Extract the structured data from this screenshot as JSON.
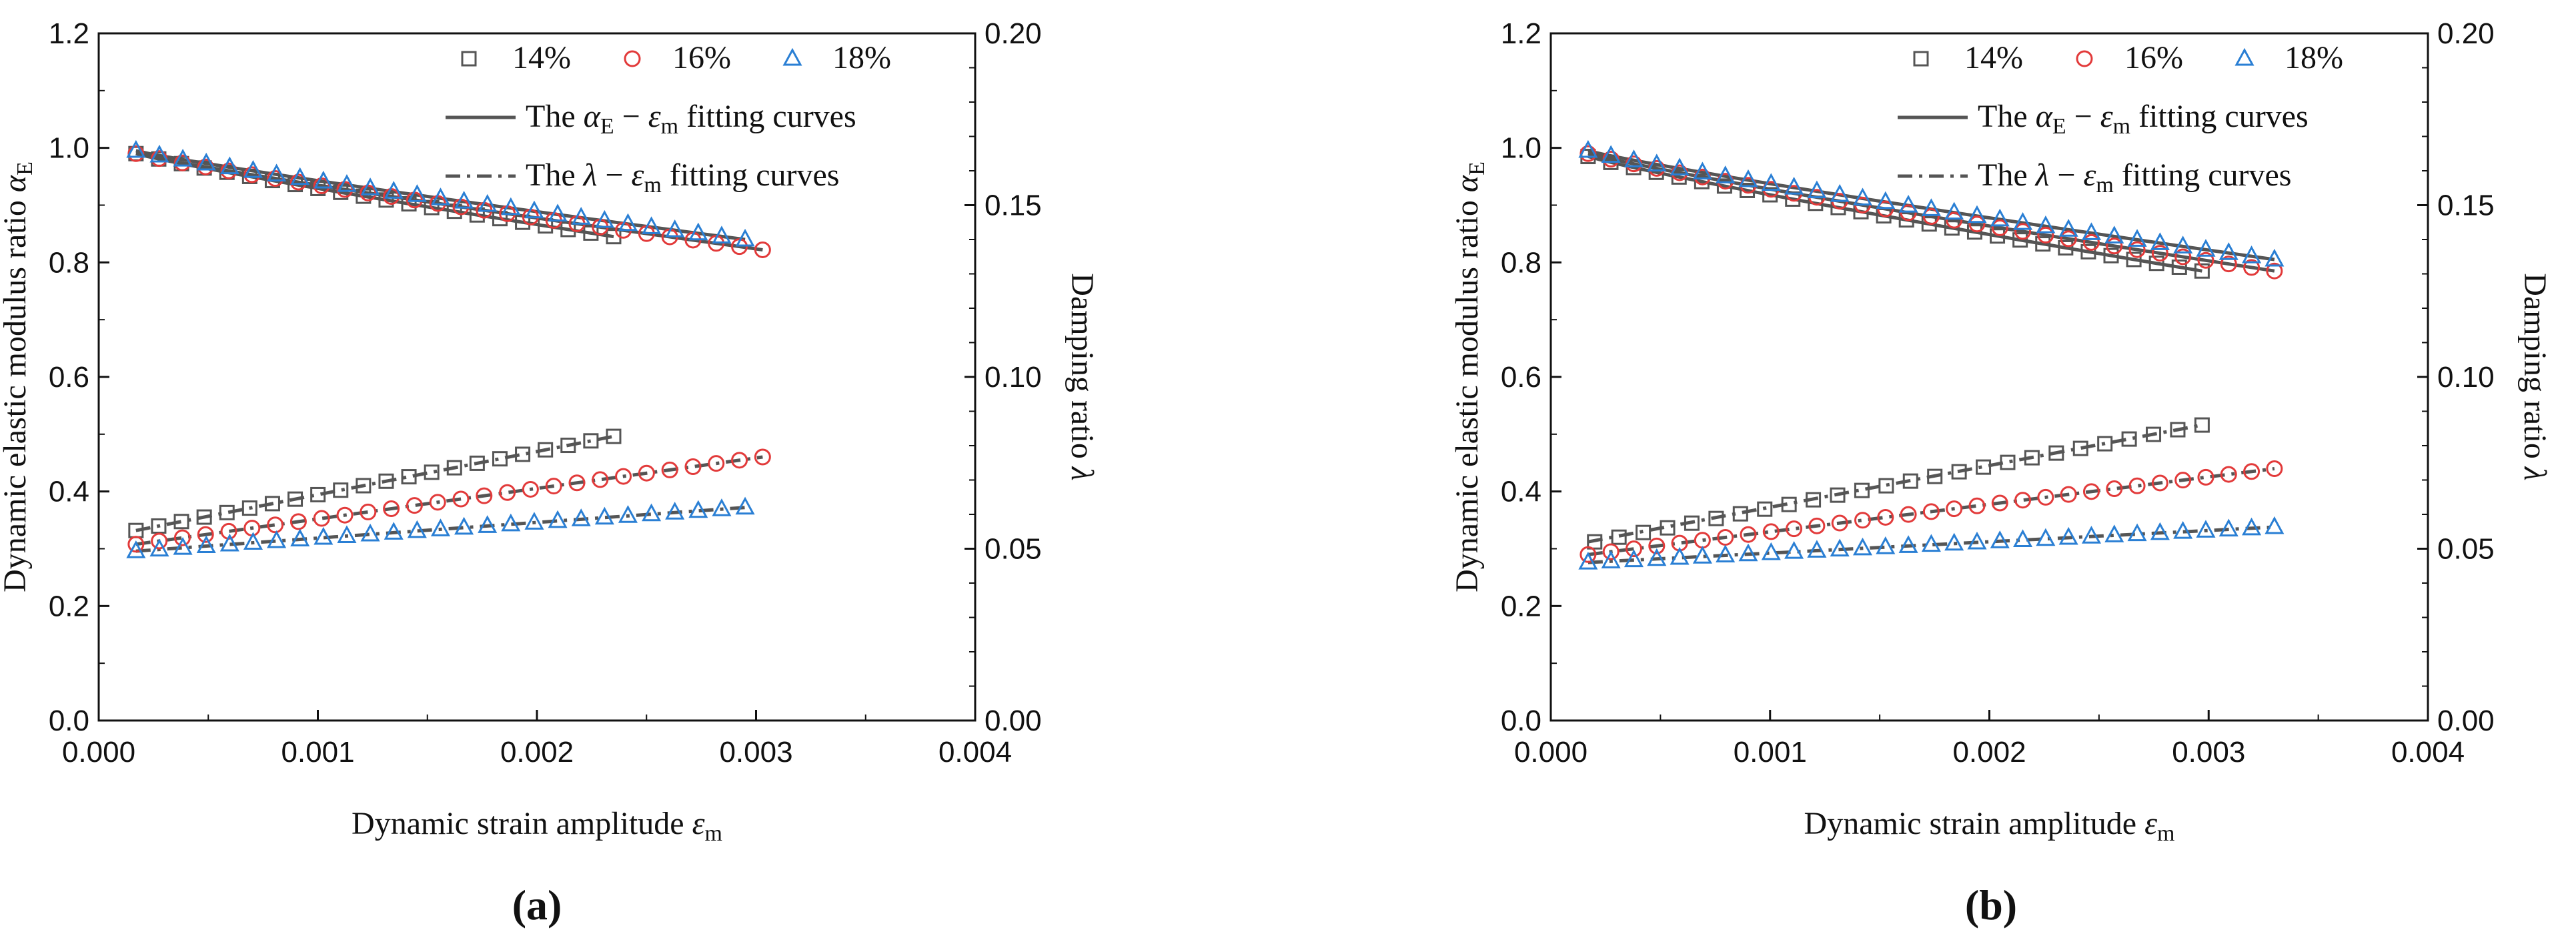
{
  "figure": {
    "panel_labels": [
      "(a)",
      "(b)"
    ]
  },
  "colors": {
    "s14": "#555555",
    "s16": "#e23a3a",
    "s18": "#2a7fd4",
    "fit": "#555555",
    "axis": "#111111"
  },
  "legend": {
    "s14": "14%",
    "s16": "16%",
    "s18": "18%",
    "fit_modulus_prefix": "The ",
    "fit_modulus_alpha": "α",
    "fit_modulus_alpha_sub": "E",
    "fit_modulus_dash": " − ",
    "fit_modulus_eps": "ε",
    "fit_modulus_eps_sub": "m",
    "fit_modulus_suffix": "  fitting curves",
    "fit_damping_prefix": "The ",
    "fit_damping_lambda": "λ",
    "fit_damping_dash": " − ",
    "fit_damping_eps": "ε",
    "fit_damping_eps_sub": "m",
    "fit_damping_suffix": " fitting curves"
  },
  "axes_text": {
    "x_title": "Dynamic strain amplitude ",
    "x_eps": "ε",
    "x_eps_sub": "m",
    "y_left_title": "Dynamic elastic modulus ratio ",
    "y_left_alpha": "α",
    "y_left_alpha_sub": "E",
    "y_right_title": "Damping ratio ",
    "y_right_lambda": "λ",
    "x_ticks": [
      "0.000",
      "0.001",
      "0.002",
      "0.003",
      "0.004"
    ],
    "y_left_ticks": [
      "0.0",
      "0.2",
      "0.4",
      "0.6",
      "0.8",
      "1.0",
      "1.2"
    ],
    "y_right_ticks": [
      "0.00",
      "0.05",
      "0.10",
      "0.15",
      "0.20"
    ]
  },
  "chart_data": [
    {
      "type": "scatter",
      "panel": "(a)",
      "xlabel": "Dynamic strain amplitude εm",
      "ylabel_left": "Dynamic elastic modulus ratio αE",
      "ylabel_right": "Damping ratio λ",
      "xlim": [
        0,
        0.004
      ],
      "ylim_left": [
        0,
        1.2
      ],
      "ylim_right": [
        0,
        0.2
      ],
      "series": [
        {
          "name": "14%",
          "axis": "left",
          "quantity": "alpha_E",
          "x0": 0.00017,
          "x1": 0.00235,
          "n": 22,
          "y0": 0.99,
          "y1": 0.845,
          "exp": 0.9
        },
        {
          "name": "16%",
          "axis": "left",
          "quantity": "alpha_E",
          "x0": 0.00017,
          "x1": 0.00303,
          "n": 28,
          "y0": 0.99,
          "y1": 0.822,
          "exp": 0.9
        },
        {
          "name": "18%",
          "axis": "left",
          "quantity": "alpha_E",
          "x0": 0.00017,
          "x1": 0.00295,
          "n": 27,
          "y0": 0.995,
          "y1": 0.84,
          "exp": 0.9
        },
        {
          "name": "14%",
          "axis": "right",
          "quantity": "lambda",
          "x0": 0.00017,
          "x1": 0.00235,
          "n": 22,
          "y0": 0.0553,
          "y1": 0.0827,
          "exp": 1.0
        },
        {
          "name": "16%",
          "axis": "right",
          "quantity": "lambda",
          "x0": 0.00017,
          "x1": 0.00303,
          "n": 28,
          "y0": 0.0513,
          "y1": 0.0767,
          "exp": 1.0
        },
        {
          "name": "18%",
          "axis": "right",
          "quantity": "lambda",
          "x0": 0.00017,
          "x1": 0.00295,
          "n": 27,
          "y0": 0.0493,
          "y1": 0.062,
          "exp": 1.0
        }
      ],
      "fits": [
        {
          "name": "14% αE fit",
          "axis": "left",
          "style": "solid",
          "x0": 0.00017,
          "x1": 0.00235,
          "y0": 0.99,
          "y1": 0.845,
          "exp": 0.9
        },
        {
          "name": "16% αE fit",
          "axis": "left",
          "style": "solid",
          "x0": 0.00017,
          "x1": 0.00303,
          "y0": 0.99,
          "y1": 0.822,
          "exp": 0.9
        },
        {
          "name": "18% αE fit",
          "axis": "left",
          "style": "solid",
          "x0": 0.00017,
          "x1": 0.00295,
          "y0": 0.995,
          "y1": 0.84,
          "exp": 0.9
        },
        {
          "name": "14% λ fit",
          "axis": "right",
          "style": "dashdot",
          "x0": 0.00017,
          "x1": 0.00235,
          "y0": 0.0553,
          "y1": 0.0827,
          "exp": 1.0
        },
        {
          "name": "16% λ fit",
          "axis": "right",
          "style": "dashdot",
          "x0": 0.00017,
          "x1": 0.00303,
          "y0": 0.0513,
          "y1": 0.0767,
          "exp": 1.0
        },
        {
          "name": "18% λ fit",
          "axis": "right",
          "style": "dashdot",
          "x0": 0.00017,
          "x1": 0.00295,
          "y0": 0.0493,
          "y1": 0.062,
          "exp": 1.0
        }
      ]
    },
    {
      "type": "scatter",
      "panel": "(b)",
      "xlabel": "Dynamic strain amplitude εm",
      "ylabel_left": "Dynamic elastic modulus ratio αE",
      "ylabel_right": "Damping ratio λ",
      "xlim": [
        0,
        0.004
      ],
      "ylim_left": [
        0,
        1.2
      ],
      "ylim_right": [
        0,
        0.2
      ],
      "series": [
        {
          "name": "14%",
          "axis": "left",
          "quantity": "alpha_E",
          "x0": 0.00017,
          "x1": 0.00297,
          "n": 28,
          "y0": 0.985,
          "y1": 0.785,
          "exp": 0.9
        },
        {
          "name": "16%",
          "axis": "left",
          "quantity": "alpha_E",
          "x0": 0.00017,
          "x1": 0.0033,
          "n": 31,
          "y0": 0.99,
          "y1": 0.785,
          "exp": 0.9
        },
        {
          "name": "18%",
          "axis": "left",
          "quantity": "alpha_E",
          "x0": 0.00017,
          "x1": 0.0033,
          "n": 31,
          "y0": 0.995,
          "y1": 0.805,
          "exp": 0.9
        },
        {
          "name": "14%",
          "axis": "right",
          "quantity": "lambda",
          "x0": 0.0002,
          "x1": 0.00297,
          "n": 26,
          "y0": 0.052,
          "y1": 0.086,
          "exp": 1.0
        },
        {
          "name": "16%",
          "axis": "right",
          "quantity": "lambda",
          "x0": 0.00017,
          "x1": 0.0033,
          "n": 31,
          "y0": 0.0483,
          "y1": 0.0733,
          "exp": 1.0
        },
        {
          "name": "18%",
          "axis": "right",
          "quantity": "lambda",
          "x0": 0.00017,
          "x1": 0.0033,
          "n": 31,
          "y0": 0.046,
          "y1": 0.0563,
          "exp": 1.0
        }
      ],
      "fits": [
        {
          "name": "14% αE fit",
          "axis": "left",
          "style": "solid",
          "x0": 0.00017,
          "x1": 0.00297,
          "y0": 0.985,
          "y1": 0.785,
          "exp": 0.9
        },
        {
          "name": "16% αE fit",
          "axis": "left",
          "style": "solid",
          "x0": 0.00017,
          "x1": 0.0033,
          "y0": 0.99,
          "y1": 0.785,
          "exp": 0.9
        },
        {
          "name": "18% αE fit",
          "axis": "left",
          "style": "solid",
          "x0": 0.00017,
          "x1": 0.0033,
          "y0": 0.995,
          "y1": 0.805,
          "exp": 0.9
        },
        {
          "name": "14% λ fit",
          "axis": "right",
          "style": "dashdot",
          "x0": 0.00017,
          "x1": 0.00297,
          "y0": 0.052,
          "y1": 0.086,
          "exp": 1.0
        },
        {
          "name": "16% λ fit",
          "axis": "right",
          "style": "dashdot",
          "x0": 0.00017,
          "x1": 0.0033,
          "y0": 0.0483,
          "y1": 0.0733,
          "exp": 1.0
        },
        {
          "name": "18% λ fit",
          "axis": "right",
          "style": "dashdot",
          "x0": 0.00017,
          "x1": 0.0033,
          "y0": 0.046,
          "y1": 0.0563,
          "exp": 1.0
        }
      ]
    }
  ]
}
